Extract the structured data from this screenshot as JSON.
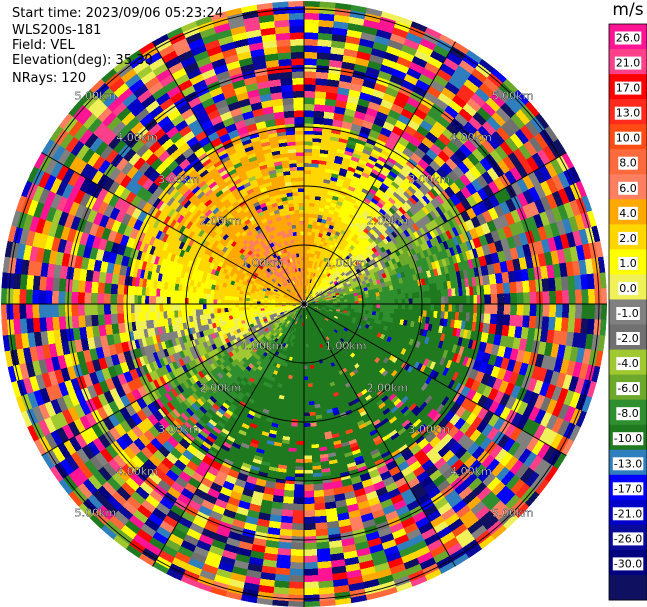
{
  "header": {
    "start_time_label": "Start time:",
    "start_time": "2023/09/06 05:23:24",
    "instrument": "WLS200s-181",
    "field_label": "Field:",
    "field": "VEL",
    "elevation_label": "Elevation(deg):",
    "elevation": "35.30",
    "nrays_label": "NRays:",
    "nrays": "120"
  },
  "chart_data": {
    "type": "heatmap",
    "projection": "polar-ppi",
    "field": "VEL",
    "n_rays": 120,
    "range_rings_km": [
      1.0,
      2.0,
      3.0,
      4.0,
      5.0
    ],
    "range_ring_labels": [
      "1.00km",
      "2.00km",
      "3.00km",
      "4.00km",
      "5.00km"
    ],
    "spokes_deg": [
      0,
      30,
      60,
      90,
      120,
      150,
      180,
      210,
      240,
      270,
      300,
      330
    ],
    "max_range_km": 7.0,
    "coherent_range_km": 3.0,
    "pattern": "Positive velocities (yellow/orange, up to ~8 m/s) to the north, negative (green, to ~-6 m/s) to the south and east within ~3 km; noise beyond.",
    "colorbar": {
      "unit": "m/s",
      "ticks": [
        "26.0",
        "21.0",
        "17.0",
        "13.0",
        "10.0",
        "8.0",
        "6.0",
        "4.0",
        "2.0",
        "1.0",
        "0.0",
        "-1.0",
        "-2.0",
        "-4.0",
        "-6.0",
        "-8.0",
        "-10.0",
        "-13.0",
        "-17.0",
        "-21.0",
        "-26.0",
        "-30.0"
      ],
      "colors": [
        "#ff1493",
        "#ff3f8a",
        "#ff0000",
        "#ff2a1c",
        "#ff4c14",
        "#ff6a3c",
        "#ff7f60",
        "#ffa800",
        "#ffd700",
        "#ffff00",
        "#f0f058",
        "#808080",
        "#707070",
        "#a0c830",
        "#6ba82c",
        "#2f8f2f",
        "#1f7a1f",
        "#2f7fbf",
        "#0000ff",
        "#0000c8",
        "#0a0a9a",
        "#000080",
        "#101060"
      ]
    }
  }
}
